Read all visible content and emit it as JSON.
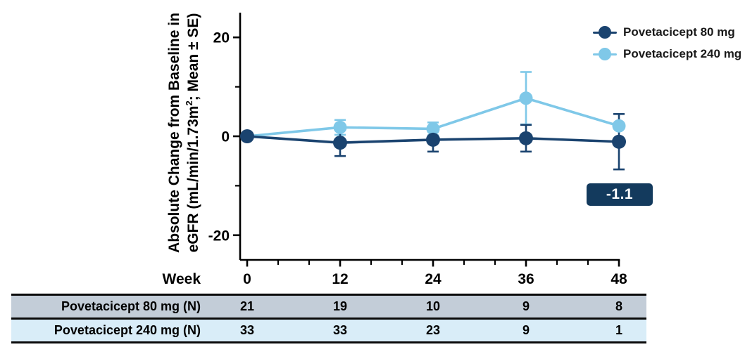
{
  "colors": {
    "navy": "#1A436F",
    "light_blue": "#7FC8E8",
    "annotation_bg": "#133A5D",
    "axis": "#000000",
    "table_row1_bg": "#C3CDD8",
    "table_row2_bg": "#D9EDF8"
  },
  "ylabel": {
    "line1": "Absolute Change from Baseline in",
    "line2_pre": "eGFR (mL/min/1.73m",
    "line2_sup": "2",
    "line2_post": "; Mean ± SE)"
  },
  "chart_data": {
    "type": "line",
    "xlabel": "Week",
    "x": [
      0,
      12,
      24,
      36,
      48
    ],
    "x_minor_step": 4,
    "ylim": [
      -25,
      25
    ],
    "y_ticks_major": [
      20,
      0,
      -20
    ],
    "y_ticks_minor": [
      10,
      -10
    ],
    "grid": false,
    "legend_position": "top-right",
    "series": [
      {
        "name": "Povetacicept 80 mg",
        "color_key": "navy",
        "values": [
          0.0,
          -1.3,
          -0.7,
          -0.4,
          -1.1
        ],
        "se": [
          0,
          2.7,
          2.4,
          2.7,
          5.6
        ]
      },
      {
        "name": "Povetacicept 240 mg",
        "color_key": "light_blue",
        "values": [
          0.0,
          1.8,
          1.5,
          7.7,
          2.1
        ],
        "se": [
          0,
          1.5,
          1.3,
          5.3,
          0
        ]
      }
    ],
    "annotation": {
      "text": "-1.1",
      "week": 48
    }
  },
  "legend": {
    "items": [
      {
        "label": "Povetacicept 80 mg",
        "color_key": "navy"
      },
      {
        "label": "Povetacicept 240 mg",
        "color_key": "light_blue"
      }
    ]
  },
  "table": {
    "rows": [
      {
        "label": "Povetacicept 80 mg (N)",
        "values": [
          "21",
          "19",
          "10",
          "9",
          "8"
        ]
      },
      {
        "label": "Povetacicept 240 mg (N)",
        "values": [
          "33",
          "33",
          "23",
          "9",
          "1"
        ]
      }
    ]
  }
}
